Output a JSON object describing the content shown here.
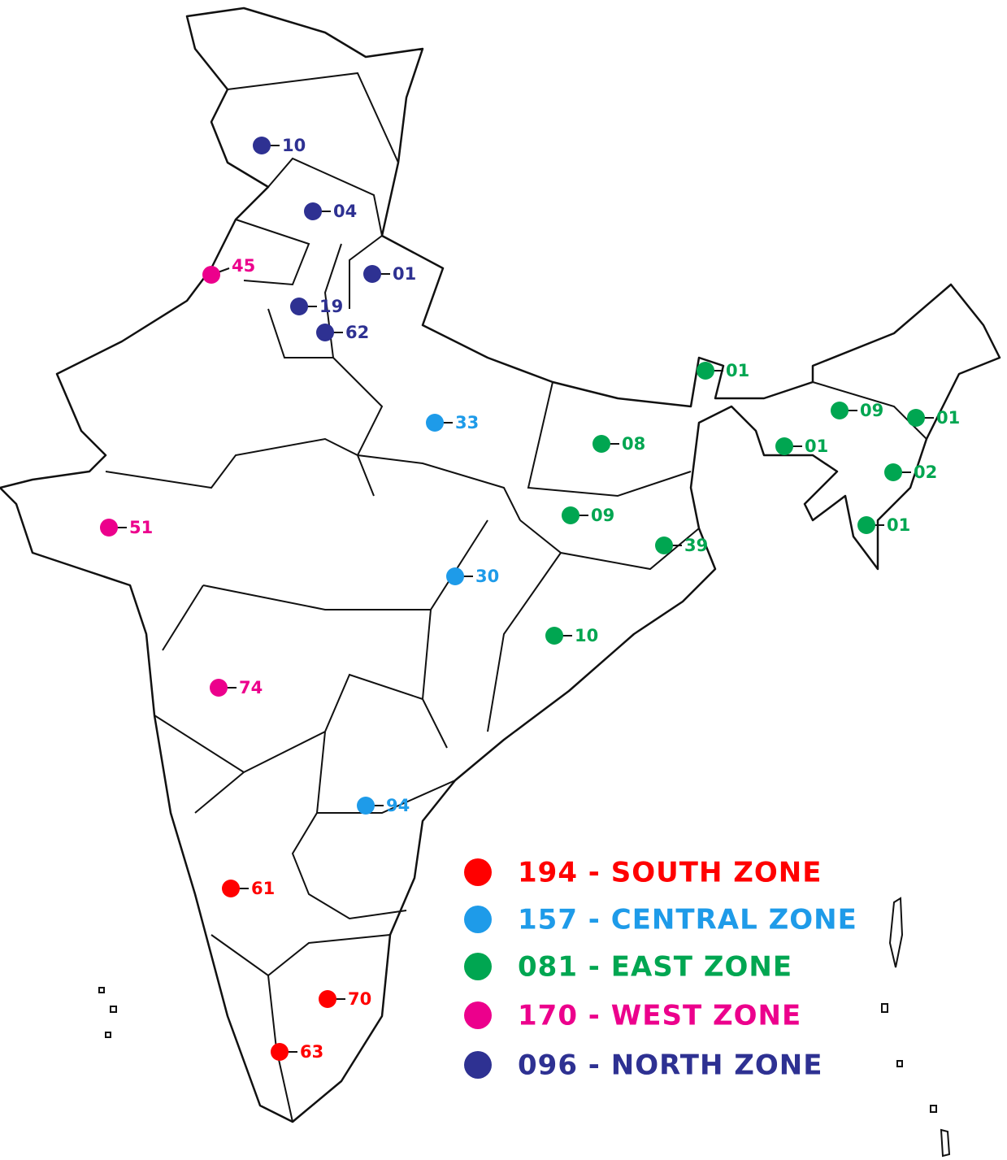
{
  "zones": [
    {
      "legend": "194 - SOUTH ZONE",
      "color": "#ff0000",
      "markers": [
        "61",
        "70",
        "63"
      ]
    },
    {
      "legend": "157 - CENTRAL ZONE",
      "color": "#1e9be9",
      "markers": [
        "33",
        "30",
        "94"
      ]
    },
    {
      "legend": "081 - EAST ZONE",
      "color": "#00a651",
      "markers": [
        "01",
        "09",
        "01",
        "01",
        "08",
        "02",
        "09",
        "39",
        "01",
        "10"
      ]
    },
    {
      "legend": "170 - WEST ZONE",
      "color": "#ec008c",
      "markers": [
        "45",
        "51",
        "74"
      ]
    },
    {
      "legend": "096 - NORTH ZONE",
      "color": "#2e3192",
      "markers": [
        "10",
        "04",
        "01",
        "19",
        "62"
      ]
    }
  ]
}
